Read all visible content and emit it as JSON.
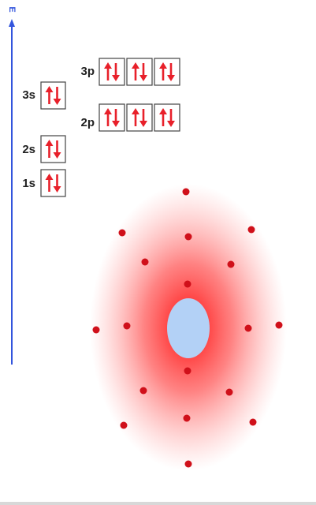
{
  "energy_label": "E",
  "orbitals": [
    {
      "label": "3s"
    },
    {
      "label": "2s"
    },
    {
      "label": "1s"
    },
    {
      "label": "3p"
    },
    {
      "label": "2p"
    }
  ]
}
